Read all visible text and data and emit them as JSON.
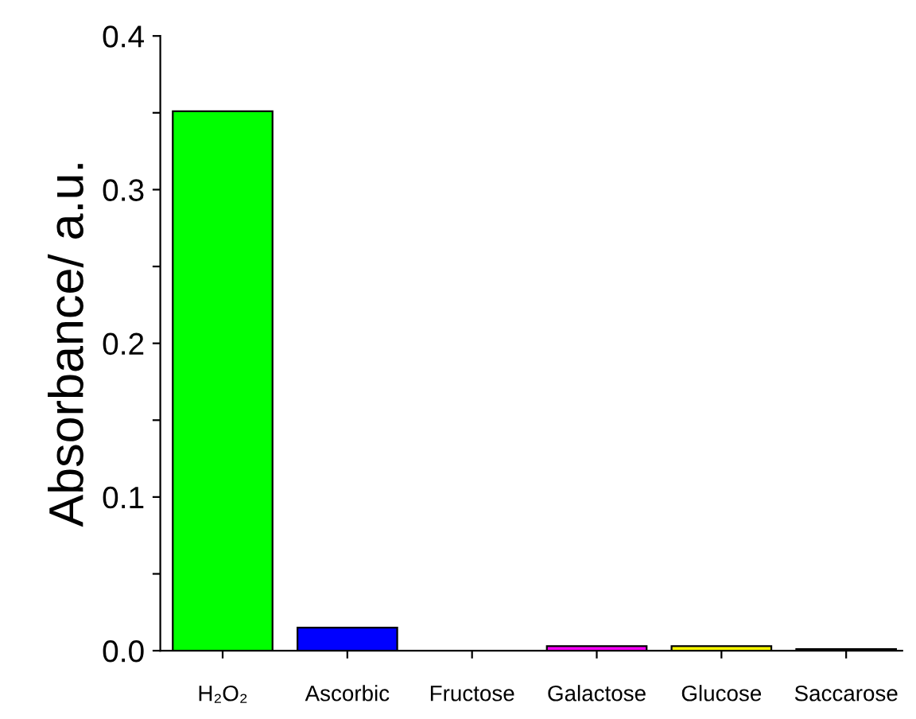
{
  "chart_data": {
    "type": "bar",
    "ylabel": "Absorbance/ a.u.",
    "categories": [
      "H₂O₂",
      "Ascorbic",
      "Fructose",
      "Galactose",
      "Glucose",
      "Saccarose"
    ],
    "values": [
      0.351,
      0.015,
      0,
      0.003,
      0.003,
      0.001
    ],
    "colors": [
      "#00ff00",
      "#0000ff",
      "#ffffff",
      "#ff00ff",
      "#ffff00",
      "#333333"
    ],
    "ylim": [
      0,
      0.4
    ],
    "yticks": [
      {
        "value": 0,
        "label": "0.0"
      },
      {
        "value": 0.05,
        "label": null
      },
      0.1,
      {
        "value": 0.15,
        "label": null
      },
      0.2,
      {
        "value": 0.25,
        "label": null
      },
      0.3,
      {
        "value": 0.35,
        "label": null
      },
      0.4
    ],
    "grid": false,
    "legend": false
  }
}
